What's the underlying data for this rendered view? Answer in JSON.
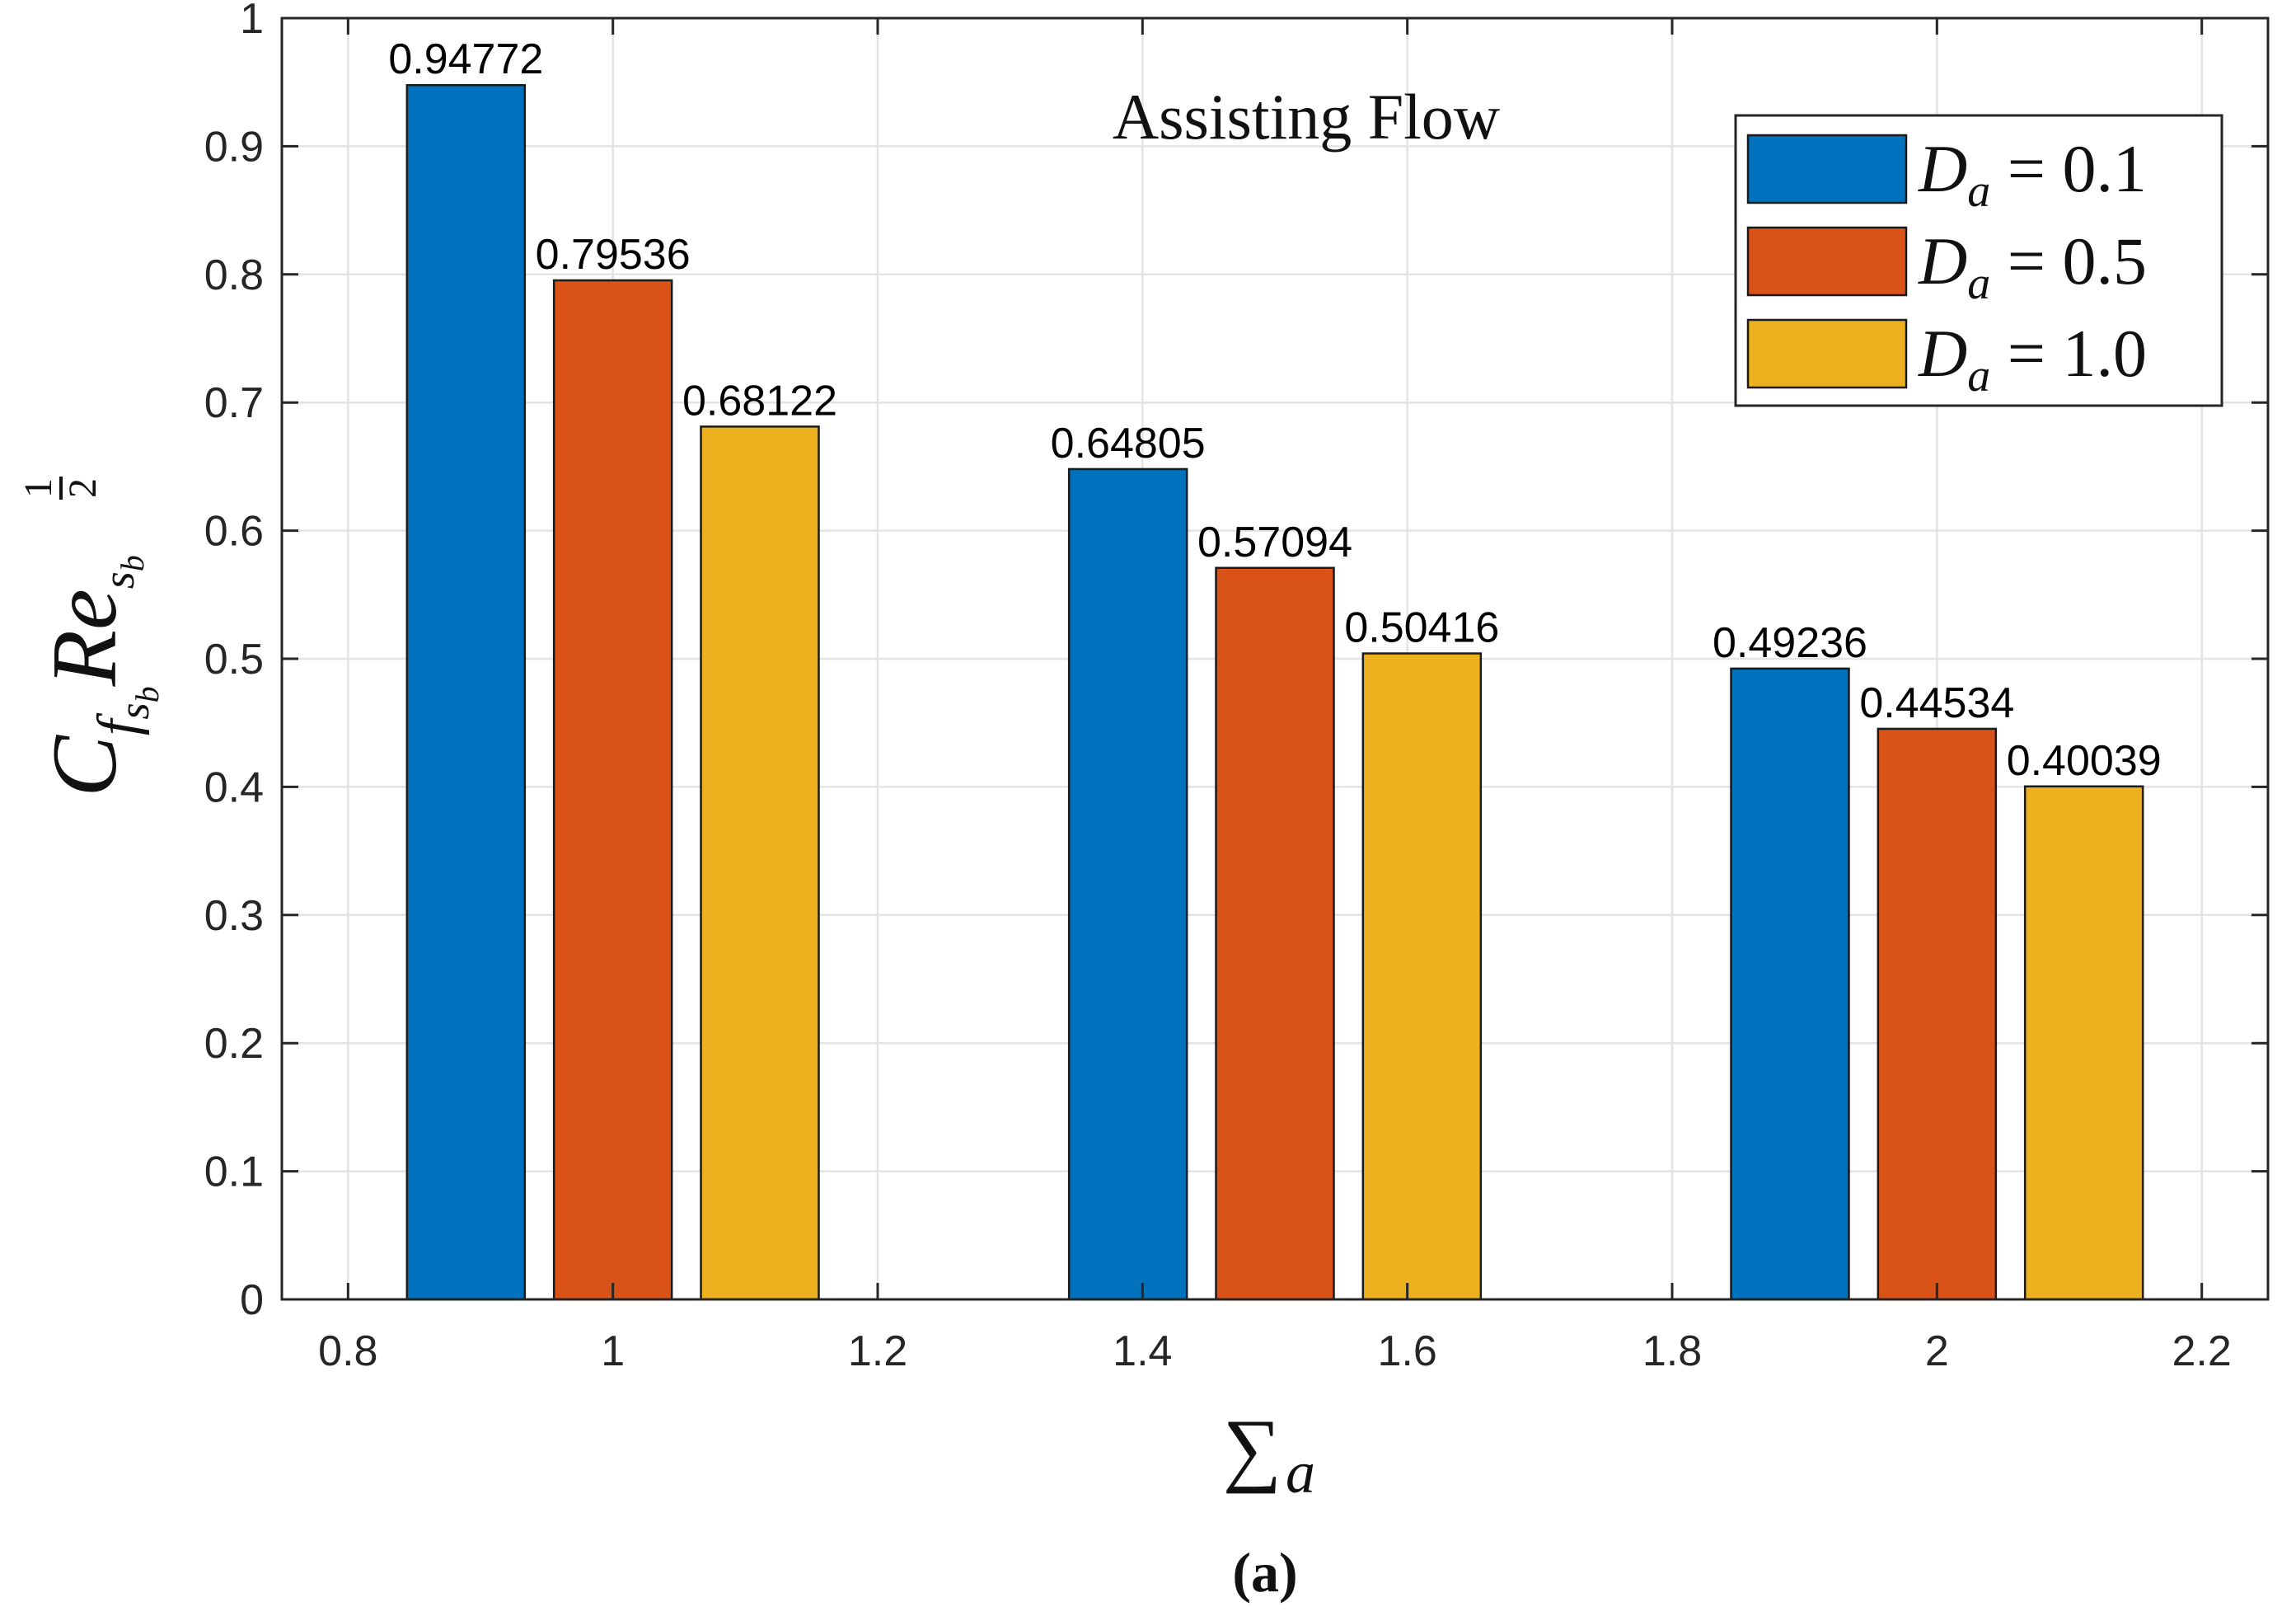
{
  "chart_data": {
    "type": "bar",
    "title": "Assisting Flow",
    "caption": "(a)",
    "xlabel": {
      "symbol": "∑",
      "subscript": "a"
    },
    "ylabel": {
      "main": "C",
      "sub1": "f",
      "sub2": "s",
      "sub3": "b",
      "main2": "Re",
      "frac_num": "1",
      "frac_den": "2",
      "sub4": "s",
      "sub5": "b"
    },
    "xlim": [
      0.75,
      2.25
    ],
    "ylim": [
      0,
      1
    ],
    "xticks": [
      0.8,
      1,
      1.2,
      1.4,
      1.6,
      1.8,
      2,
      2.2
    ],
    "xtick_labels": [
      "0.8",
      "1",
      "1.2",
      "1.4",
      "1.6",
      "1.8",
      "2",
      "2.2"
    ],
    "yticks": [
      0,
      0.1,
      0.2,
      0.3,
      0.4,
      0.5,
      0.6,
      0.7,
      0.8,
      0.9,
      1
    ],
    "ytick_labels": [
      "0",
      "0.1",
      "0.2",
      "0.3",
      "0.4",
      "0.5",
      "0.6",
      "0.7",
      "0.8",
      "0.9",
      "1"
    ],
    "grid": true,
    "legend_position": "top-right",
    "group_centers": [
      1,
      1.5,
      2
    ],
    "bar_offsets": [
      -0.111,
      0,
      0.111
    ],
    "bar_width": 0.089,
    "series": [
      {
        "name": "D_a = 0.1",
        "legend_var": "D",
        "legend_sub": "a",
        "legend_value": " = 0.1",
        "color": "#0072BD",
        "values": [
          0.94772,
          0.64805,
          0.49236
        ],
        "labels": [
          "0.94772",
          "0.64805",
          "0.49236"
        ]
      },
      {
        "name": "D_a = 0.5",
        "legend_var": "D",
        "legend_sub": "a",
        "legend_value": " = 0.5",
        "color": "#D95319",
        "values": [
          0.79536,
          0.57094,
          0.44534
        ],
        "labels": [
          "0.79536",
          "0.57094",
          "0.44534"
        ]
      },
      {
        "name": "D_a = 1.0",
        "legend_var": "D",
        "legend_sub": "a",
        "legend_value": " = 1.0",
        "color": "#EDB120",
        "values": [
          0.68122,
          0.50416,
          0.40039
        ],
        "labels": [
          "0.68122",
          "0.50416",
          "0.40039"
        ]
      }
    ]
  }
}
